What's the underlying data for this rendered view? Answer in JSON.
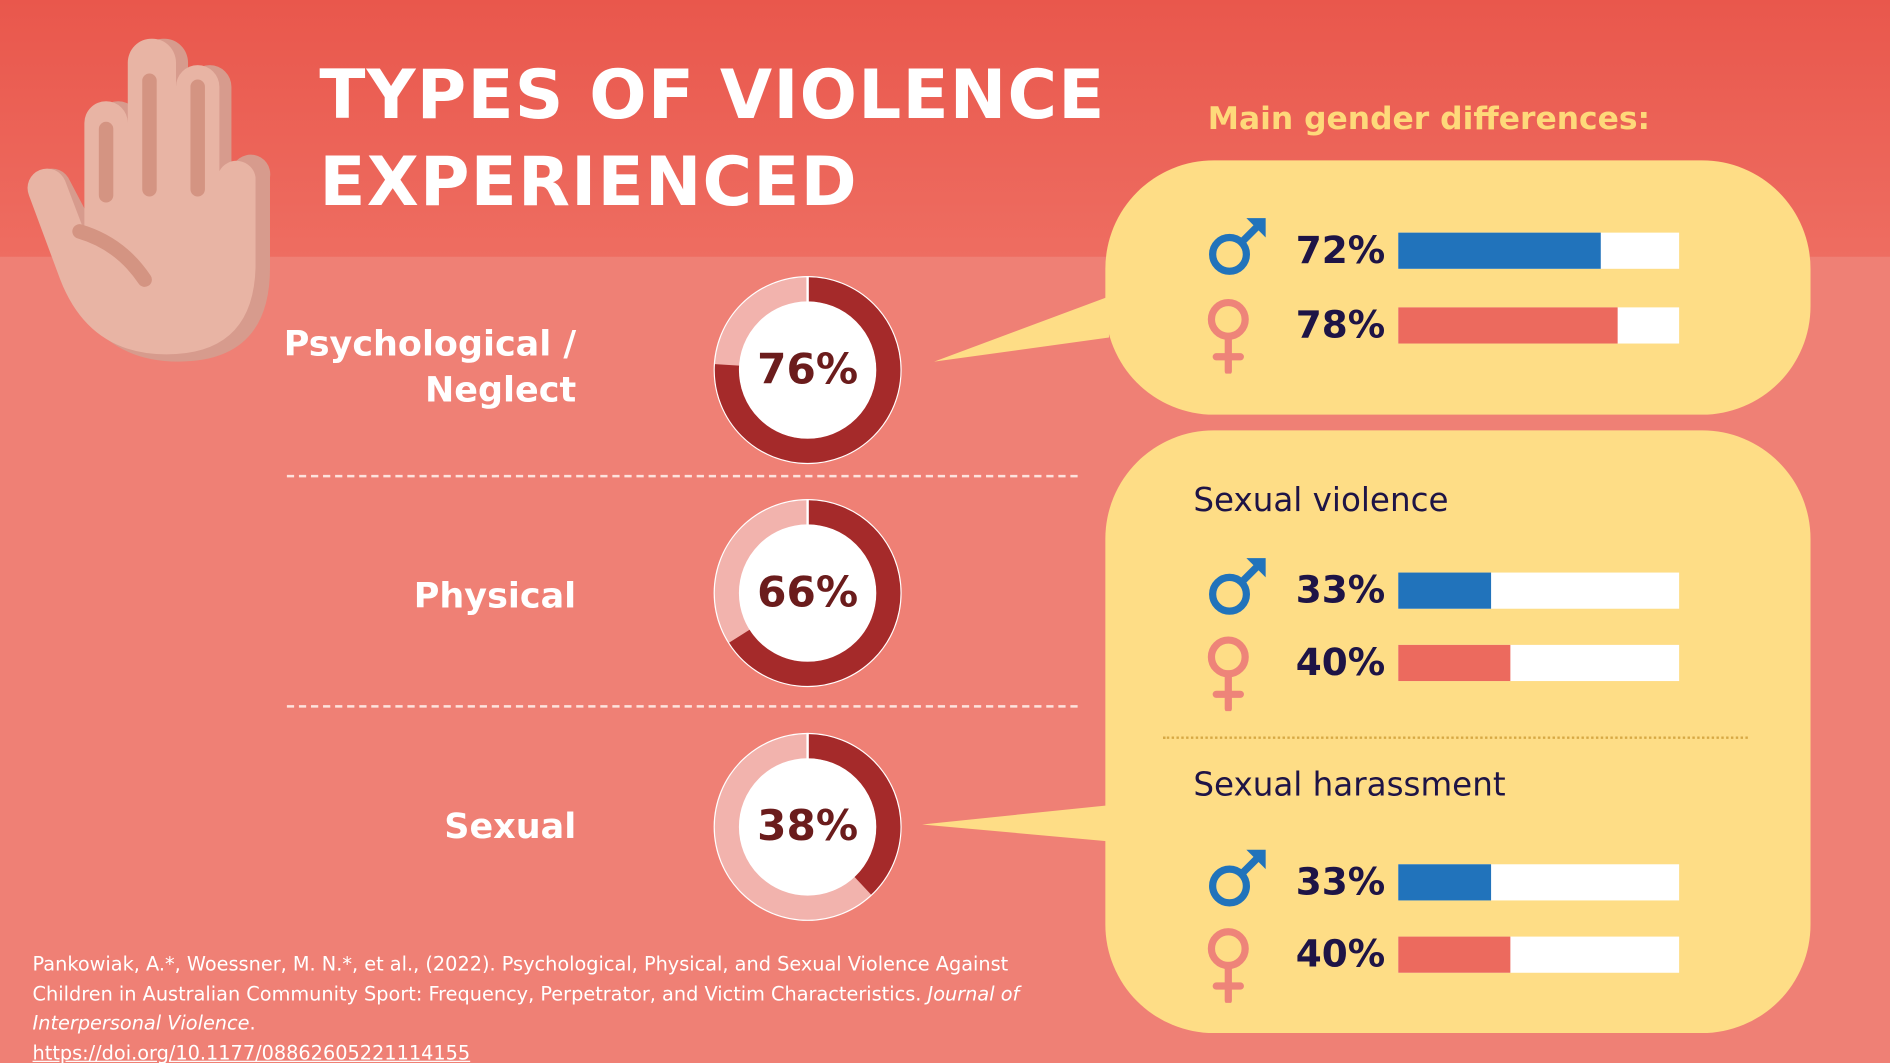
{
  "title_lines": [
    "TYPES OF VIOLENCE",
    "EXPERIENCED"
  ],
  "subheading": "Main gender differences:",
  "categories": [
    {
      "label_lines": [
        "Psychological /",
        "Neglect"
      ],
      "value": 76,
      "text": "76%"
    },
    {
      "label_lines": [
        "Physical"
      ],
      "value": 66,
      "text": "66%"
    },
    {
      "label_lines": [
        "Sexual"
      ],
      "value": 38,
      "text": "38%"
    }
  ],
  "gender_panels": {
    "psychological": {
      "male": {
        "value": 72,
        "text": "72%"
      },
      "female": {
        "value": 78,
        "text": "78%"
      }
    },
    "sexual_violence": {
      "title": "Sexual violence",
      "male": {
        "value": 33,
        "text": "33%"
      },
      "female": {
        "value": 40,
        "text": "40%"
      }
    },
    "sexual_harassment": {
      "title": "Sexual harassment",
      "male": {
        "value": 33,
        "text": "33%"
      },
      "female": {
        "value": 40,
        "text": "40%"
      }
    }
  },
  "citation": {
    "line1": "Pankowiak, A.*, Woessner, M. N.*, et al., (2022). Psychological, Physical, and Sexual Violence Against Children in Australian Community Sport: Frequency, Perpetrator, and Victim Characteristics.",
    "journal": "Journal of Interpersonal Violence",
    "doi": "https://doi.org/10.1177/08862605221114155"
  },
  "colors": {
    "male": "#2173bb",
    "female": "#ec6a5e",
    "donut_dark": "#a52a2a",
    "donut_light": "#f2b3ad",
    "bubble": "#fedd86",
    "header": "#ec675b",
    "background": "#ef8075"
  },
  "icons": {
    "hand": "stop-hand-icon",
    "male": "male-symbol-icon",
    "female": "female-symbol-icon"
  }
}
